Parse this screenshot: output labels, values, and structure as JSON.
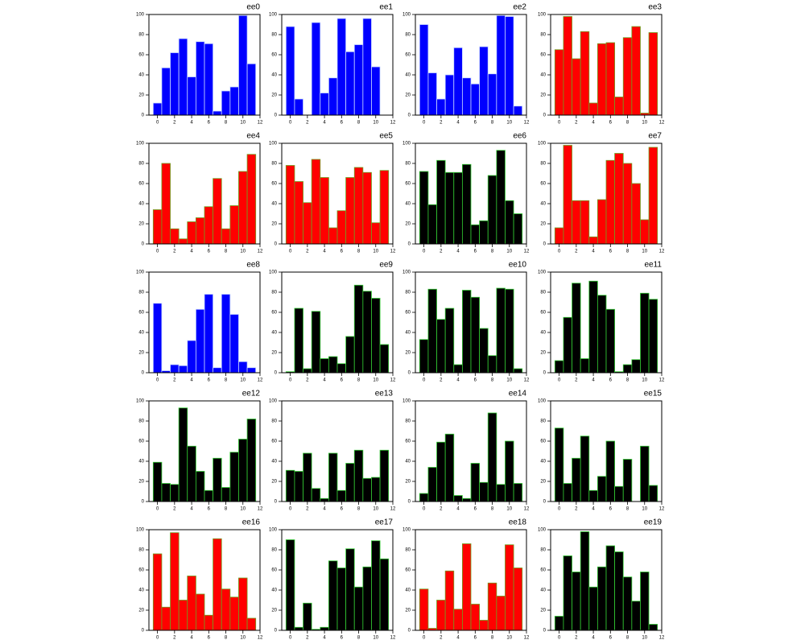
{
  "chart_data": [
    {
      "type": "bar",
      "title": "ee0",
      "x": [
        0,
        1,
        2,
        3,
        4,
        5,
        6,
        7,
        8,
        9,
        10,
        11
      ],
      "values": [
        12,
        47,
        62,
        76,
        38,
        73,
        71,
        4,
        24,
        28,
        99,
        51
      ],
      "color": "#0000ff",
      "edgecolor": "#c8d8ff",
      "xlim": [
        -1,
        12
      ],
      "ylim": [
        0,
        100
      ],
      "xticks": [
        0,
        2,
        4,
        6,
        8,
        10,
        12
      ],
      "yticks": [
        0,
        20,
        40,
        60,
        80,
        100
      ]
    },
    {
      "type": "bar",
      "title": "ee1",
      "x": [
        0,
        1,
        2,
        3,
        4,
        5,
        6,
        7,
        8,
        9,
        10,
        11
      ],
      "values": [
        88,
        16,
        0,
        92,
        22,
        37,
        96,
        63,
        70,
        96,
        48,
        0
      ],
      "color": "#0000ff",
      "edgecolor": "#c8d8ff",
      "xlim": [
        -1,
        12
      ],
      "ylim": [
        0,
        100
      ],
      "xticks": [
        0,
        2,
        4,
        6,
        8,
        10,
        12
      ],
      "yticks": [
        0,
        20,
        40,
        60,
        80,
        100
      ]
    },
    {
      "type": "bar",
      "title": "ee2",
      "x": [
        0,
        1,
        2,
        3,
        4,
        5,
        6,
        7,
        8,
        9,
        10,
        11
      ],
      "values": [
        90,
        42,
        16,
        40,
        67,
        37,
        31,
        68,
        41,
        99,
        98,
        9
      ],
      "color": "#0000ff",
      "edgecolor": "#c8d8ff",
      "xlim": [
        -1,
        12
      ],
      "ylim": [
        0,
        100
      ],
      "xticks": [
        0,
        2,
        4,
        6,
        8,
        10,
        12
      ],
      "yticks": [
        0,
        20,
        40,
        60,
        80,
        100
      ]
    },
    {
      "type": "bar",
      "title": "ee3",
      "x": [
        0,
        1,
        2,
        3,
        4,
        5,
        6,
        7,
        8,
        9,
        10,
        11
      ],
      "values": [
        65,
        98,
        56,
        83,
        12,
        71,
        72,
        18,
        77,
        88,
        2,
        82
      ],
      "color": "#ff0000",
      "edgecolor": "#6fa020",
      "xlim": [
        -1,
        12
      ],
      "ylim": [
        0,
        100
      ],
      "xticks": [
        0,
        2,
        4,
        6,
        8,
        10,
        12
      ],
      "yticks": [
        0,
        20,
        40,
        60,
        80,
        100
      ]
    },
    {
      "type": "bar",
      "title": "ee4",
      "x": [
        0,
        1,
        2,
        3,
        4,
        5,
        6,
        7,
        8,
        9,
        10,
        11
      ],
      "values": [
        34,
        80,
        15,
        5,
        22,
        26,
        37,
        65,
        15,
        38,
        72,
        89
      ],
      "color": "#ff0000",
      "edgecolor": "#6fa020",
      "xlim": [
        -1,
        12
      ],
      "ylim": [
        0,
        100
      ],
      "xticks": [
        0,
        2,
        4,
        6,
        8,
        10,
        12
      ],
      "yticks": [
        0,
        20,
        40,
        60,
        80,
        100
      ]
    },
    {
      "type": "bar",
      "title": "ee5",
      "x": [
        0,
        1,
        2,
        3,
        4,
        5,
        6,
        7,
        8,
        9,
        10,
        11
      ],
      "values": [
        78,
        62,
        41,
        84,
        66,
        16,
        33,
        66,
        76,
        71,
        21,
        73
      ],
      "color": "#ff0000",
      "edgecolor": "#6fa020",
      "xlim": [
        -1,
        12
      ],
      "ylim": [
        0,
        100
      ],
      "xticks": [
        0,
        2,
        4,
        6,
        8,
        10,
        12
      ],
      "yticks": [
        0,
        20,
        40,
        60,
        80,
        100
      ]
    },
    {
      "type": "bar",
      "title": "ee6",
      "x": [
        0,
        1,
        2,
        3,
        4,
        5,
        6,
        7,
        8,
        9,
        10,
        11
      ],
      "values": [
        72,
        39,
        83,
        71,
        71,
        79,
        19,
        23,
        68,
        93,
        43,
        30
      ],
      "color": "#000000",
      "edgecolor": "#33cc33",
      "xlim": [
        -1,
        12
      ],
      "ylim": [
        0,
        100
      ],
      "xticks": [
        0,
        2,
        4,
        6,
        8,
        10,
        12
      ],
      "yticks": [
        0,
        20,
        40,
        60,
        80,
        100
      ]
    },
    {
      "type": "bar",
      "title": "ee7",
      "x": [
        0,
        1,
        2,
        3,
        4,
        5,
        6,
        7,
        8,
        9,
        10,
        11
      ],
      "values": [
        16,
        98,
        43,
        43,
        7,
        44,
        83,
        90,
        80,
        60,
        24,
        96
      ],
      "color": "#ff0000",
      "edgecolor": "#6fa020",
      "xlim": [
        -1,
        12
      ],
      "ylim": [
        0,
        100
      ],
      "xticks": [
        0,
        2,
        4,
        6,
        8,
        10,
        12
      ],
      "yticks": [
        0,
        20,
        40,
        60,
        80,
        100
      ]
    },
    {
      "type": "bar",
      "title": "ee8",
      "x": [
        0,
        1,
        2,
        3,
        4,
        5,
        6,
        7,
        8,
        9,
        10,
        11
      ],
      "values": [
        69,
        2,
        8,
        7,
        32,
        63,
        78,
        5,
        78,
        58,
        11,
        5
      ],
      "color": "#0000ff",
      "edgecolor": "#c8d8ff",
      "xlim": [
        -1,
        12
      ],
      "ylim": [
        0,
        100
      ],
      "xticks": [
        0,
        2,
        4,
        6,
        8,
        10,
        12
      ],
      "yticks": [
        0,
        20,
        40,
        60,
        80,
        100
      ]
    },
    {
      "type": "bar",
      "title": "ee9",
      "x": [
        0,
        1,
        2,
        3,
        4,
        5,
        6,
        7,
        8,
        9,
        10,
        11
      ],
      "values": [
        1,
        64,
        4,
        61,
        14,
        16,
        9,
        36,
        87,
        81,
        74,
        28
      ],
      "color": "#000000",
      "edgecolor": "#33cc33",
      "xlim": [
        -1,
        12
      ],
      "ylim": [
        0,
        100
      ],
      "xticks": [
        0,
        2,
        4,
        6,
        8,
        10,
        12
      ],
      "yticks": [
        0,
        20,
        40,
        60,
        80,
        100
      ]
    },
    {
      "type": "bar",
      "title": "ee10",
      "x": [
        0,
        1,
        2,
        3,
        4,
        5,
        6,
        7,
        8,
        9,
        10,
        11
      ],
      "values": [
        33,
        83,
        53,
        64,
        8,
        82,
        75,
        44,
        17,
        84,
        83,
        4
      ],
      "color": "#000000",
      "edgecolor": "#33cc33",
      "xlim": [
        -1,
        12
      ],
      "ylim": [
        0,
        100
      ],
      "xticks": [
        0,
        2,
        4,
        6,
        8,
        10,
        12
      ],
      "yticks": [
        0,
        20,
        40,
        60,
        80,
        100
      ]
    },
    {
      "type": "bar",
      "title": "ee11",
      "x": [
        0,
        1,
        2,
        3,
        4,
        5,
        6,
        7,
        8,
        9,
        10,
        11
      ],
      "values": [
        12,
        55,
        89,
        14,
        91,
        77,
        63,
        1,
        8,
        13,
        79,
        73
      ],
      "color": "#000000",
      "edgecolor": "#33cc33",
      "xlim": [
        -1,
        12
      ],
      "ylim": [
        0,
        100
      ],
      "xticks": [
        0,
        2,
        4,
        6,
        8,
        10,
        12
      ],
      "yticks": [
        0,
        20,
        40,
        60,
        80,
        100
      ]
    },
    {
      "type": "bar",
      "title": "ee12",
      "x": [
        0,
        1,
        2,
        3,
        4,
        5,
        6,
        7,
        8,
        9,
        10,
        11
      ],
      "values": [
        39,
        18,
        17,
        93,
        55,
        30,
        11,
        43,
        14,
        49,
        62,
        82
      ],
      "color": "#000000",
      "edgecolor": "#33cc33",
      "xlim": [
        -1,
        12
      ],
      "ylim": [
        0,
        100
      ],
      "xticks": [
        0,
        2,
        4,
        6,
        8,
        10,
        12
      ],
      "yticks": [
        0,
        20,
        40,
        60,
        80,
        100
      ]
    },
    {
      "type": "bar",
      "title": "ee13",
      "x": [
        0,
        1,
        2,
        3,
        4,
        5,
        6,
        7,
        8,
        9,
        10,
        11
      ],
      "values": [
        31,
        30,
        48,
        13,
        3,
        48,
        11,
        38,
        51,
        23,
        24,
        51
      ],
      "color": "#000000",
      "edgecolor": "#33cc33",
      "xlim": [
        -1,
        12
      ],
      "ylim": [
        0,
        100
      ],
      "xticks": [
        0,
        2,
        4,
        6,
        8,
        10,
        12
      ],
      "yticks": [
        0,
        20,
        40,
        60,
        80,
        100
      ]
    },
    {
      "type": "bar",
      "title": "ee14",
      "x": [
        0,
        1,
        2,
        3,
        4,
        5,
        6,
        7,
        8,
        9,
        10,
        11
      ],
      "values": [
        8,
        34,
        59,
        67,
        6,
        3,
        38,
        19,
        88,
        17,
        60,
        18
      ],
      "color": "#000000",
      "edgecolor": "#33cc33",
      "xlim": [
        -1,
        12
      ],
      "ylim": [
        0,
        100
      ],
      "xticks": [
        0,
        2,
        4,
        6,
        8,
        10,
        12
      ],
      "yticks": [
        0,
        20,
        40,
        60,
        80,
        100
      ]
    },
    {
      "type": "bar",
      "title": "ee15",
      "x": [
        0,
        1,
        2,
        3,
        4,
        5,
        6,
        7,
        8,
        9,
        10,
        11
      ],
      "values": [
        73,
        18,
        43,
        65,
        11,
        25,
        60,
        15,
        42,
        0,
        55,
        16
      ],
      "color": "#000000",
      "edgecolor": "#33cc33",
      "xlim": [
        -1,
        12
      ],
      "ylim": [
        0,
        100
      ],
      "xticks": [
        0,
        2,
        4,
        6,
        8,
        10,
        12
      ],
      "yticks": [
        0,
        20,
        40,
        60,
        80,
        100
      ]
    },
    {
      "type": "bar",
      "title": "ee16",
      "x": [
        0,
        1,
        2,
        3,
        4,
        5,
        6,
        7,
        8,
        9,
        10,
        11
      ],
      "values": [
        76,
        23,
        97,
        30,
        54,
        36,
        15,
        91,
        41,
        33,
        52,
        12
      ],
      "color": "#ff0000",
      "edgecolor": "#6fa020",
      "xlim": [
        -1,
        12
      ],
      "ylim": [
        0,
        100
      ],
      "xticks": [
        0,
        2,
        4,
        6,
        8,
        10,
        12
      ],
      "yticks": [
        0,
        20,
        40,
        60,
        80,
        100
      ]
    },
    {
      "type": "bar",
      "title": "ee17",
      "x": [
        0,
        1,
        2,
        3,
        4,
        5,
        6,
        7,
        8,
        9,
        10,
        11
      ],
      "values": [
        90,
        3,
        27,
        1,
        3,
        69,
        62,
        81,
        43,
        63,
        89,
        71
      ],
      "color": "#000000",
      "edgecolor": "#33cc33",
      "xlim": [
        -1,
        12
      ],
      "ylim": [
        0,
        100
      ],
      "xticks": [
        0,
        2,
        4,
        6,
        8,
        10,
        12
      ],
      "yticks": [
        0,
        20,
        40,
        60,
        80,
        100
      ]
    },
    {
      "type": "bar",
      "title": "ee18",
      "x": [
        0,
        1,
        2,
        3,
        4,
        5,
        6,
        7,
        8,
        9,
        10,
        11
      ],
      "values": [
        41,
        2,
        30,
        59,
        21,
        86,
        26,
        10,
        47,
        34,
        85,
        62
      ],
      "color": "#ff0000",
      "edgecolor": "#6fa020",
      "xlim": [
        -1,
        12
      ],
      "ylim": [
        0,
        100
      ],
      "xticks": [
        0,
        2,
        4,
        6,
        8,
        10,
        12
      ],
      "yticks": [
        0,
        20,
        40,
        60,
        80,
        100
      ]
    },
    {
      "type": "bar",
      "title": "ee19",
      "x": [
        0,
        1,
        2,
        3,
        4,
        5,
        6,
        7,
        8,
        9,
        10,
        11
      ],
      "values": [
        14,
        74,
        58,
        98,
        43,
        63,
        84,
        78,
        53,
        29,
        58,
        6
      ],
      "color": "#000000",
      "edgecolor": "#33cc33",
      "xlim": [
        -1,
        12
      ],
      "ylim": [
        0,
        100
      ],
      "xticks": [
        0,
        2,
        4,
        6,
        8,
        10,
        12
      ],
      "yticks": [
        0,
        20,
        40,
        60,
        80,
        100
      ]
    }
  ]
}
